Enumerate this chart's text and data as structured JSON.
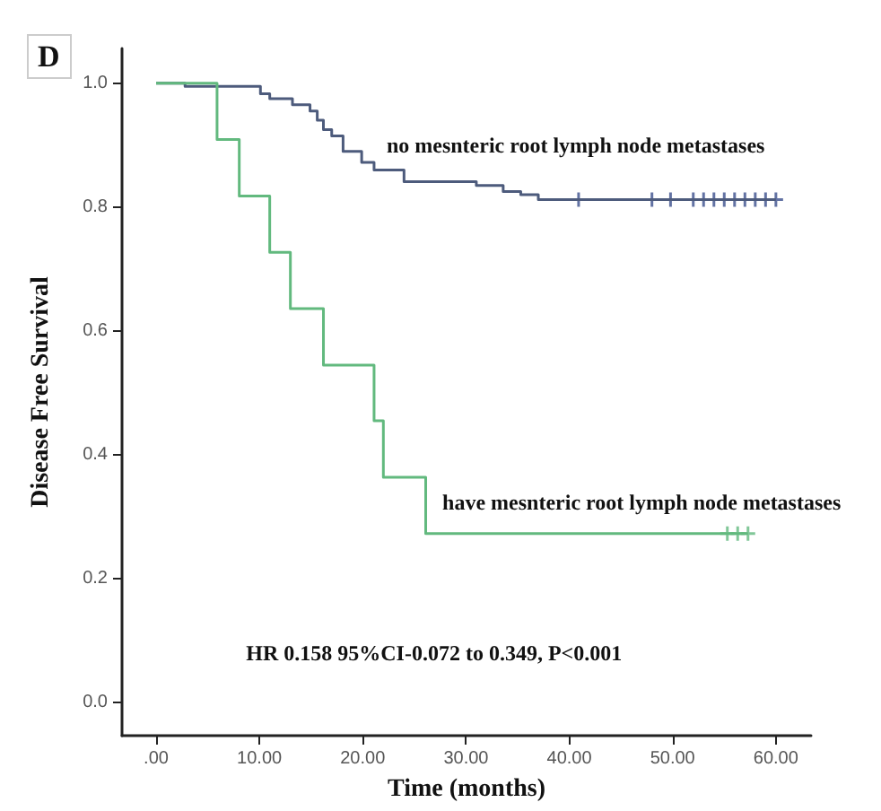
{
  "chart_data": {
    "type": "step",
    "title": "D",
    "xlabel": "Time (months)",
    "ylabel": "Disease Free Survival",
    "xlim": [
      -3.3,
      63.4
    ],
    "xticks": [
      {
        "value": 0,
        "label": ".00"
      },
      {
        "value": 10,
        "label": "10.00"
      },
      {
        "value": 20,
        "label": "20.00"
      },
      {
        "value": 30,
        "label": "30.00"
      },
      {
        "value": 40,
        "label": "40.00"
      },
      {
        "value": 50,
        "label": "50.00"
      },
      {
        "value": 60,
        "label": "60.00"
      }
    ],
    "ylim": [
      -0.053,
      1.056
    ],
    "yticks": [
      {
        "value": 0,
        "label": "0.0"
      },
      {
        "value": 0.2,
        "label": "0.2"
      },
      {
        "value": 0.4,
        "label": "0.4"
      },
      {
        "value": 0.6,
        "label": "0.6"
      },
      {
        "value": 0.8,
        "label": "0.8"
      },
      {
        "value": 1,
        "label": "1.0"
      }
    ],
    "grid": false,
    "marker": "none",
    "line_style": "solid",
    "series": [
      {
        "color": "#4d5b7c",
        "x": [
          0,
          2.8,
          10.1,
          11.0,
          13.2,
          14.9,
          15.6,
          16.2,
          17.0,
          18.1,
          19.9,
          21.1,
          24.0,
          31.0,
          33.6,
          35.3,
          37.0,
          60.0
        ],
        "values": [
          1.0,
          0.995,
          0.983,
          0.975,
          0.965,
          0.955,
          0.94,
          0.925,
          0.915,
          0.89,
          0.872,
          0.86,
          0.841,
          0.835,
          0.825,
          0.82,
          0.812,
          0.812
        ]
      },
      {
        "color": "#62b97e",
        "x": [
          0,
          5.9,
          8.05,
          11.0,
          13.0,
          16.2,
          21.1,
          22.0,
          26.1,
          57.3
        ],
        "values": [
          1.0,
          0.909,
          0.818,
          0.727,
          0.636,
          0.545,
          0.455,
          0.364,
          0.273,
          0.273
        ]
      },
      {
        "type": "scatter",
        "marker": "cross",
        "color": "#3b4f8c",
        "x": [
          40.9,
          48.0,
          49.8,
          52,
          53,
          54,
          55,
          56,
          57,
          58,
          59,
          60
        ],
        "values": [
          0.812,
          0.812,
          0.812,
          0.812,
          0.812,
          0.812,
          0.812,
          0.812,
          0.812,
          0.812,
          0.812,
          0.812
        ]
      },
      {
        "type": "scatter",
        "marker": "cross",
        "color": "#62b97e",
        "x": [
          55.3,
          56.3,
          57.3
        ],
        "values": [
          0.273,
          0.273,
          0.273
        ]
      }
    ],
    "annotations": [
      "no mesnteric root lymph node metastases",
      "have mesnteric root lymph node metastases",
      "HR 0.158 95%CI-0.072 to 0.349, P<0.001"
    ]
  }
}
